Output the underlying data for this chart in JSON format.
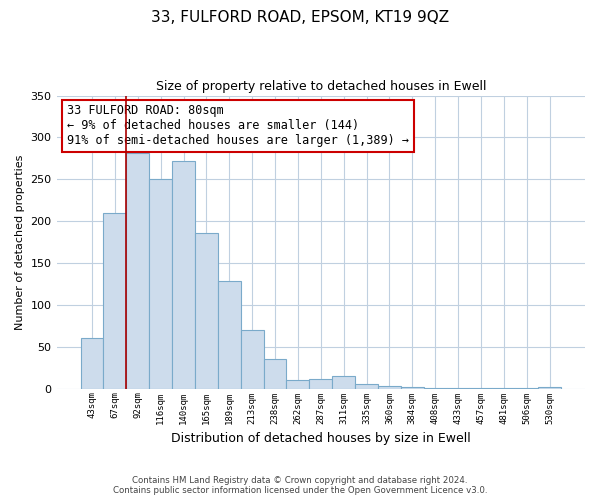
{
  "title_line1": "33, FULFORD ROAD, EPSOM, KT19 9QZ",
  "title_line2": "Size of property relative to detached houses in Ewell",
  "xlabel": "Distribution of detached houses by size in Ewell",
  "ylabel": "Number of detached properties",
  "bar_labels": [
    "43sqm",
    "67sqm",
    "92sqm",
    "116sqm",
    "140sqm",
    "165sqm",
    "189sqm",
    "213sqm",
    "238sqm",
    "262sqm",
    "287sqm",
    "311sqm",
    "335sqm",
    "360sqm",
    "384sqm",
    "408sqm",
    "433sqm",
    "457sqm",
    "481sqm",
    "506sqm",
    "530sqm"
  ],
  "bar_values": [
    60,
    210,
    281,
    250,
    272,
    186,
    128,
    70,
    35,
    10,
    12,
    15,
    5,
    3,
    2,
    1,
    1,
    1,
    0.5,
    0.5,
    2
  ],
  "bar_color": "#cddcec",
  "bar_edge_color": "#7aaaca",
  "vline_color": "#aa0000",
  "annotation_text": "33 FULFORD ROAD: 80sqm\n← 9% of detached houses are smaller (144)\n91% of semi-detached houses are larger (1,389) →",
  "annotation_box_color": "#ffffff",
  "annotation_box_edgecolor": "#cc0000",
  "ylim": [
    0,
    350
  ],
  "yticks": [
    0,
    50,
    100,
    150,
    200,
    250,
    300,
    350
  ],
  "footer_line1": "Contains HM Land Registry data © Crown copyright and database right 2024.",
  "footer_line2": "Contains public sector information licensed under the Open Government Licence v3.0.",
  "background_color": "#ffffff",
  "grid_color": "#c0d0e0"
}
